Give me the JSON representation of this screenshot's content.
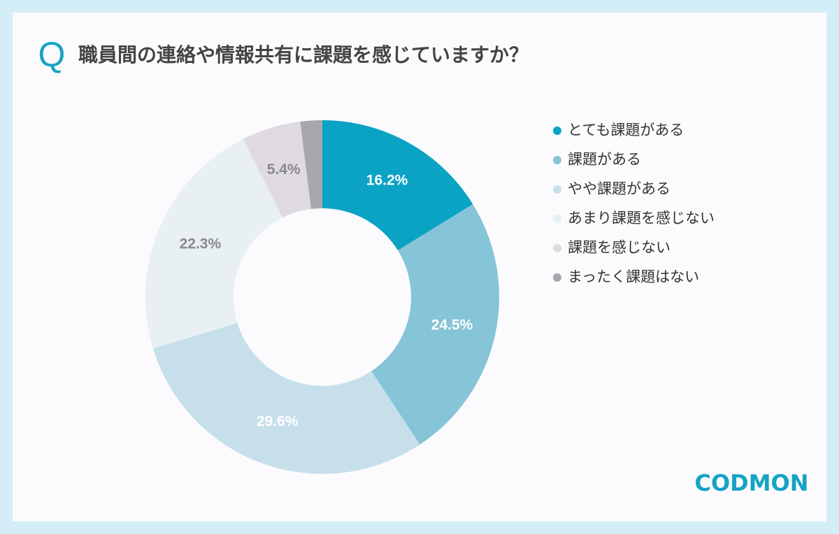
{
  "question_mark": "Q",
  "brand": "CODMON",
  "chart_data": {
    "type": "donut",
    "title": "職員間の連絡や情報共有に課題を感じていますか？",
    "categories": [
      "とても課題がある",
      "課題がある",
      "やや課題がある",
      "あまり課題を感じない",
      "課題を感じない",
      "まったく課題はない"
    ],
    "values": [
      16.2,
      24.5,
      29.6,
      22.3,
      5.4,
      2.0
    ],
    "value_labels": [
      "16.2%",
      "24.5%",
      "29.6%",
      "22.3%",
      "5.4%",
      null
    ],
    "colors": [
      "#0ba3c4",
      "#86c4d8",
      "#c6dfeb",
      "#e8f0f4",
      "#dedadf",
      "#a8a7ac"
    ],
    "label_colors": [
      "#ffffff",
      "#ffffff",
      "#ffffff",
      "#8a8a8e",
      "#8a8a8e",
      null
    ],
    "legend": "right"
  }
}
